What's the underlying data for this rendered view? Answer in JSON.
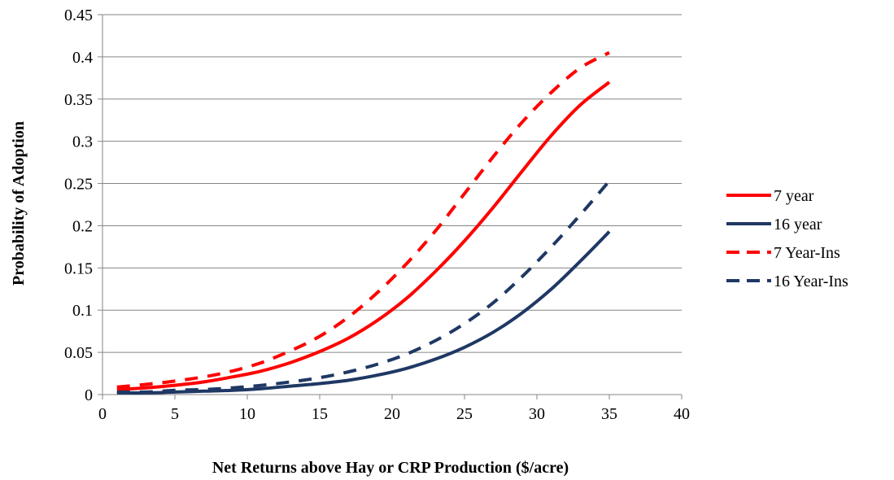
{
  "chart_data": {
    "type": "line",
    "title": "",
    "xlabel": "Net Returns above Hay or CRP Production ($/acre)",
    "ylabel": "Probability of Adoption",
    "xlim": [
      0,
      40
    ],
    "ylim": [
      0,
      0.45
    ],
    "x_ticks": [
      "0",
      "5",
      "10",
      "15",
      "20",
      "25",
      "30",
      "35",
      "40"
    ],
    "y_ticks": [
      "0",
      "0.05",
      "0.1",
      "0.15",
      "0.2",
      "0.25",
      "0.3",
      "0.35",
      "0.4",
      "0.45"
    ],
    "grid": "horizontal",
    "legend_position": "right",
    "x": [
      1,
      3,
      5,
      7,
      9,
      11,
      13,
      15,
      17,
      19,
      21,
      23,
      25,
      27,
      29,
      31,
      33,
      35
    ],
    "series": [
      {
        "name": "7 year",
        "color": "#ff0000",
        "dash": "solid",
        "values": [
          0.006,
          0.008,
          0.011,
          0.015,
          0.021,
          0.028,
          0.038,
          0.051,
          0.067,
          0.088,
          0.114,
          0.146,
          0.182,
          0.222,
          0.265,
          0.307,
          0.343,
          0.37
        ]
      },
      {
        "name": "16 year",
        "color": "#1f3864",
        "dash": "solid",
        "values": [
          0.002,
          0.002,
          0.003,
          0.004,
          0.005,
          0.007,
          0.01,
          0.013,
          0.017,
          0.023,
          0.031,
          0.042,
          0.056,
          0.074,
          0.097,
          0.125,
          0.158,
          0.193
        ]
      },
      {
        "name": "7 Year-Ins",
        "color": "#ff0000",
        "dash": "dashed",
        "values": [
          0.009,
          0.012,
          0.016,
          0.021,
          0.028,
          0.038,
          0.052,
          0.069,
          0.092,
          0.121,
          0.155,
          0.194,
          0.238,
          0.282,
          0.323,
          0.358,
          0.387,
          0.405
        ]
      },
      {
        "name": "16 Year-Ins",
        "color": "#1f3864",
        "dash": "dashed",
        "values": [
          0.003,
          0.003,
          0.005,
          0.006,
          0.008,
          0.011,
          0.015,
          0.02,
          0.027,
          0.036,
          0.048,
          0.064,
          0.084,
          0.109,
          0.14,
          0.175,
          0.213,
          0.253
        ]
      }
    ]
  }
}
